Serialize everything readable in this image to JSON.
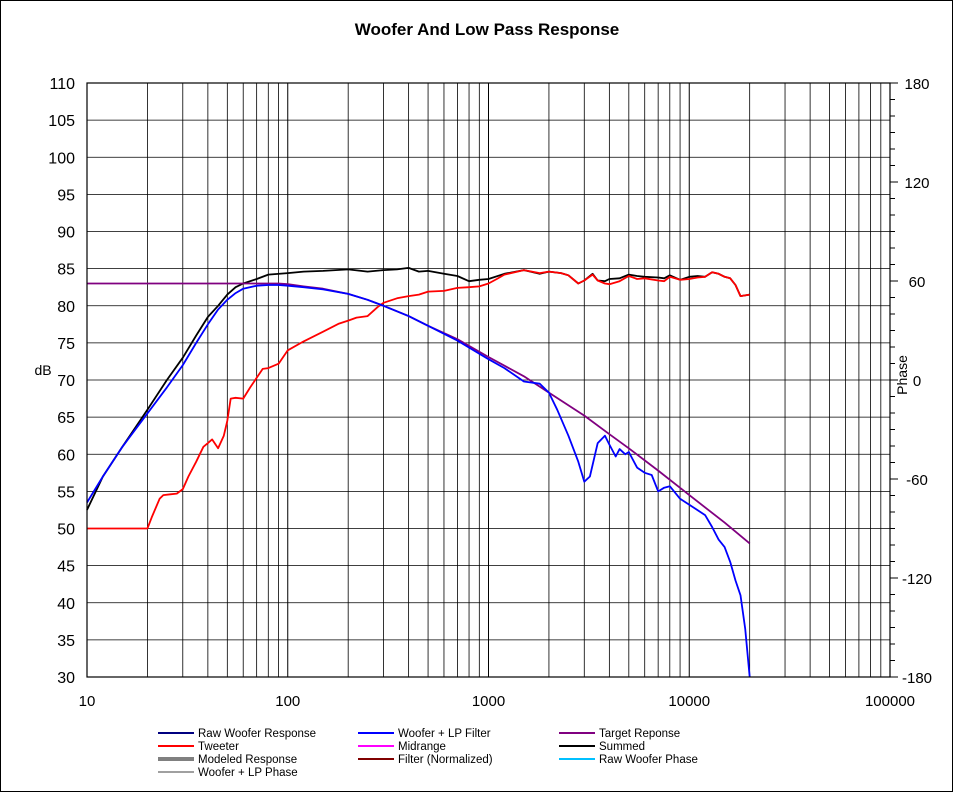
{
  "chart_data": {
    "type": "line",
    "title": "Woofer  And Low Pass Response",
    "ylabel": "dB",
    "y2label": "Phase",
    "x_scale": "log",
    "xlim": [
      10,
      100000
    ],
    "ylim": [
      30,
      110
    ],
    "y2lim": [
      -180,
      180
    ],
    "x_tick_labels": [
      "10",
      "100",
      "1000",
      "10000",
      "100000"
    ],
    "y_tick_labels": [
      "30",
      "35",
      "40",
      "45",
      "50",
      "55",
      "60",
      "65",
      "70",
      "75",
      "80",
      "85",
      "90",
      "95",
      "100",
      "105",
      "110"
    ],
    "y2_tick_labels": [
      "-180",
      "-120",
      "-60",
      "0",
      "60",
      "120",
      "180"
    ],
    "grid": true,
    "legend": {
      "position": "bottom",
      "entries": [
        {
          "label": "Raw Woofer Response",
          "color": "#000080"
        },
        {
          "label": "Woofer + LP Filter",
          "color": "#0000ff"
        },
        {
          "label": "Target Reponse",
          "color": "#800080"
        },
        {
          "label": "Tweeter",
          "color": "#ff0000"
        },
        {
          "label": "Midrange",
          "color": "#ff00ff"
        },
        {
          "label": "Summed",
          "color": "#000000"
        },
        {
          "label": "Modeled Response",
          "color": "#808080"
        },
        {
          "label": "Filter (Normalized)",
          "color": "#800000"
        },
        {
          "label": "Raw Woofer Phase",
          "color": "#00c0ff"
        },
        {
          "label": "Woofer + LP  Phase",
          "color": "#a0a0a0"
        }
      ]
    },
    "series": [
      {
        "name": "Summed",
        "color": "#000000",
        "x": [
          10,
          12,
          15,
          20,
          25,
          30,
          35,
          40,
          45,
          50,
          55,
          60,
          70,
          80,
          100,
          120,
          150,
          200,
          250,
          300,
          350,
          400,
          450,
          500,
          600,
          700,
          800,
          900,
          1000,
          1200,
          1500,
          1800,
          2000,
          2300,
          2500,
          2800,
          3000,
          3300,
          3500,
          3800,
          4000,
          4500,
          5000,
          5500,
          6000,
          7000,
          7500,
          8000,
          9000,
          10000,
          11000,
          12000,
          13000,
          14000,
          15000,
          16000,
          17000,
          18000,
          20000
        ],
        "y": [
          52.5,
          57,
          61,
          66,
          70,
          73,
          76,
          78.5,
          80,
          81.5,
          82.5,
          83,
          83.6,
          84.2,
          84.4,
          84.6,
          84.7,
          84.9,
          84.6,
          84.8,
          84.9,
          85.1,
          84.6,
          84.7,
          84.3,
          84,
          83.3,
          83.5,
          83.6,
          84.3,
          84.8,
          84.3,
          84.6,
          84.4,
          84.1,
          83,
          83.4,
          84.3,
          83.4,
          83.3,
          83.6,
          83.7,
          84.2,
          84,
          83.9,
          83.8,
          83.7,
          84.1,
          83.5,
          83.9,
          84,
          83.9,
          84.5,
          84.3,
          83.9,
          83.7,
          82.8,
          81.3,
          81.5
        ]
      },
      {
        "name": "Tweeter",
        "color": "#ff0000",
        "x": [
          10,
          19,
          20,
          21,
          23,
          24,
          26,
          28,
          30,
          32,
          35,
          38,
          40,
          42,
          45,
          48,
          50,
          52,
          55,
          60,
          65,
          70,
          75,
          80,
          90,
          100,
          120,
          150,
          180,
          200,
          220,
          250,
          280,
          300,
          350,
          400,
          450,
          500,
          600,
          700,
          800,
          900,
          1000,
          1100,
          1200,
          1500,
          1800,
          2000,
          2300,
          2500,
          2800,
          3000,
          3300,
          3500,
          3800,
          4000,
          4500,
          5000,
          5500,
          6000,
          7000,
          7500,
          8000,
          9000,
          10000,
          11000,
          12000,
          13000,
          14000,
          15000,
          16000,
          17000,
          18000,
          20000
        ],
        "y": [
          50,
          50,
          50,
          51.5,
          54,
          54.5,
          54.6,
          54.7,
          55.3,
          57,
          59,
          61,
          61.5,
          62,
          60.8,
          62.5,
          64.5,
          67.5,
          67.6,
          67.5,
          69,
          70.3,
          71.5,
          71.6,
          72.2,
          74,
          75.2,
          76.5,
          77.6,
          78,
          78.4,
          78.6,
          79.8,
          80.4,
          81,
          81.3,
          81.5,
          81.9,
          82,
          82.4,
          82.5,
          82.6,
          83,
          83.6,
          84.2,
          84.8,
          84.4,
          84.6,
          84.4,
          84.1,
          83,
          83.4,
          84.2,
          83.4,
          83,
          82.9,
          83.3,
          84,
          83.6,
          83.7,
          83.4,
          83.3,
          83.9,
          83.5,
          83.6,
          83.8,
          83.9,
          84.5,
          84.3,
          83.9,
          83.7,
          82.8,
          81.3,
          81.5
        ]
      },
      {
        "name": "Target Reponse",
        "color": "#800080",
        "x": [
          10,
          20,
          30,
          40,
          50,
          60,
          70,
          80,
          90,
          100,
          120,
          150,
          200,
          250,
          300,
          400,
          500,
          700,
          1000,
          1500,
          2000,
          3000,
          4000,
          5000,
          7000,
          10000,
          15000,
          20000
        ],
        "y": [
          83,
          83,
          83,
          83,
          83,
          83,
          83,
          83,
          83,
          82.9,
          82.6,
          82.3,
          81.6,
          80.8,
          80,
          78.6,
          77.3,
          75.5,
          73.1,
          70.5,
          68.3,
          65.2,
          62.7,
          60.8,
          57.8,
          54.5,
          50.8,
          48
        ]
      },
      {
        "name": "Woofer + LP Filter",
        "color": "#0000ff",
        "x": [
          10,
          12,
          15,
          20,
          25,
          30,
          35,
          40,
          45,
          50,
          55,
          60,
          70,
          80,
          90,
          100,
          120,
          150,
          200,
          250,
          300,
          400,
          500,
          700,
          1000,
          1200,
          1500,
          1800,
          2000,
          2200,
          2500,
          2800,
          3000,
          3200,
          3500,
          3800,
          4000,
          4300,
          4500,
          4800,
          5000,
          5500,
          6000,
          6500,
          7000,
          7500,
          8000,
          9000,
          10000,
          12000,
          13000,
          14000,
          15000,
          16000,
          17000,
          18000,
          19000,
          20000
        ],
        "y": [
          53.5,
          57,
          61,
          65.5,
          69,
          72,
          75,
          77.5,
          79.5,
          80.8,
          81.7,
          82.3,
          82.7,
          82.8,
          82.8,
          82.7,
          82.5,
          82.2,
          81.6,
          80.8,
          80,
          78.6,
          77.3,
          75.3,
          72.8,
          71.6,
          69.8,
          69.5,
          68.3,
          66,
          62.5,
          59,
          56.3,
          57,
          61.5,
          62.5,
          61.3,
          59.7,
          60.7,
          60,
          60.3,
          58.2,
          57.5,
          57.2,
          55,
          55.5,
          55.7,
          54,
          53.2,
          51.8,
          50.2,
          48.5,
          47.5,
          45.5,
          43,
          41,
          36.5,
          30
        ]
      }
    ]
  }
}
